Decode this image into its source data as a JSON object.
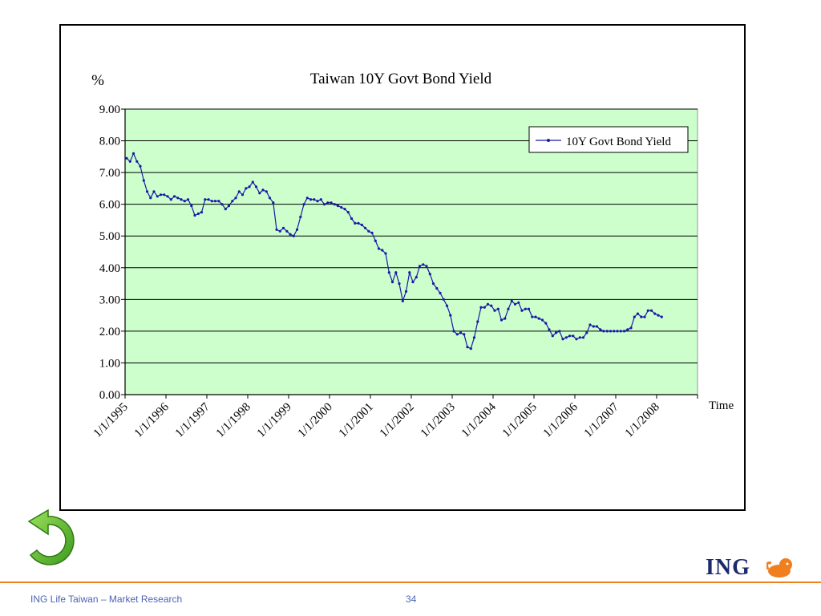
{
  "chart_data": {
    "type": "line",
    "title": "Taiwan 10Y Govt Bond Yield",
    "ylabel": "%",
    "xlabel": "Time",
    "ylim": [
      0,
      9
    ],
    "yticks": [
      "0.00",
      "1.00",
      "2.00",
      "3.00",
      "4.00",
      "5.00",
      "6.00",
      "7.00",
      "8.00",
      "9.00"
    ],
    "xticks": [
      "1/1/1995",
      "1/1/1996",
      "1/1/1997",
      "1/1/1998",
      "1/1/1999",
      "1/1/2000",
      "1/1/2001",
      "1/1/2002",
      "1/1/2003",
      "1/1/2004",
      "1/1/2005",
      "1/1/2006",
      "1/1/2007",
      "1/1/2008"
    ],
    "grid": "horizontal",
    "legend": "top-right",
    "plot_background": "#ccffcc",
    "series": [
      {
        "name": "10Y Govt Bond Yield",
        "color": "#1a1aa6",
        "frequency": "monthly",
        "start": "1995-01",
        "values": [
          7.45,
          7.35,
          7.6,
          7.35,
          7.2,
          6.75,
          6.4,
          6.2,
          6.4,
          6.25,
          6.3,
          6.3,
          6.25,
          6.15,
          6.25,
          6.2,
          6.15,
          6.1,
          6.15,
          5.95,
          5.65,
          5.7,
          5.75,
          6.15,
          6.15,
          6.1,
          6.1,
          6.1,
          6.0,
          5.85,
          5.95,
          6.1,
          6.2,
          6.4,
          6.3,
          6.5,
          6.55,
          6.7,
          6.55,
          6.35,
          6.45,
          6.4,
          6.2,
          6.05,
          5.2,
          5.15,
          5.25,
          5.15,
          5.05,
          5.0,
          5.2,
          5.6,
          6.0,
          6.2,
          6.15,
          6.15,
          6.1,
          6.15,
          6.0,
          6.05,
          6.05,
          6.0,
          5.95,
          5.9,
          5.85,
          5.75,
          5.55,
          5.4,
          5.4,
          5.35,
          5.25,
          5.15,
          5.1,
          4.85,
          4.6,
          4.55,
          4.45,
          3.85,
          3.55,
          3.85,
          3.5,
          2.95,
          3.25,
          3.85,
          3.55,
          3.7,
          4.05,
          4.1,
          4.05,
          3.8,
          3.5,
          3.35,
          3.2,
          3.0,
          2.8,
          2.5,
          2.0,
          1.9,
          1.95,
          1.9,
          1.5,
          1.45,
          1.8,
          2.3,
          2.75,
          2.75,
          2.85,
          2.8,
          2.65,
          2.7,
          2.35,
          2.4,
          2.7,
          2.95,
          2.85,
          2.9,
          2.65,
          2.7,
          2.7,
          2.45,
          2.45,
          2.4,
          2.35,
          2.25,
          2.05,
          1.85,
          1.95,
          2.0,
          1.75,
          1.8,
          1.85,
          1.85,
          1.75,
          1.8,
          1.8,
          1.95,
          2.2,
          2.15,
          2.15,
          2.05,
          2.0,
          2.0,
          2.0,
          2.0,
          2.0,
          2.0,
          2.0,
          2.05,
          2.1,
          2.45,
          2.55,
          2.45,
          2.45,
          2.65,
          2.65,
          2.55,
          2.5,
          2.45
        ]
      }
    ]
  },
  "footer": {
    "left_text": "ING Life Taiwan – Market Research",
    "page_number": "34"
  },
  "logo": {
    "text": "ING",
    "text_color": "#1a2a6c",
    "lion_color": "#f07f1e"
  },
  "nav": {
    "back_icon": "green-circular-arrow-icon",
    "back_color": "#5cb82e"
  },
  "accent": {
    "footer_rule": "#f07f1e"
  }
}
